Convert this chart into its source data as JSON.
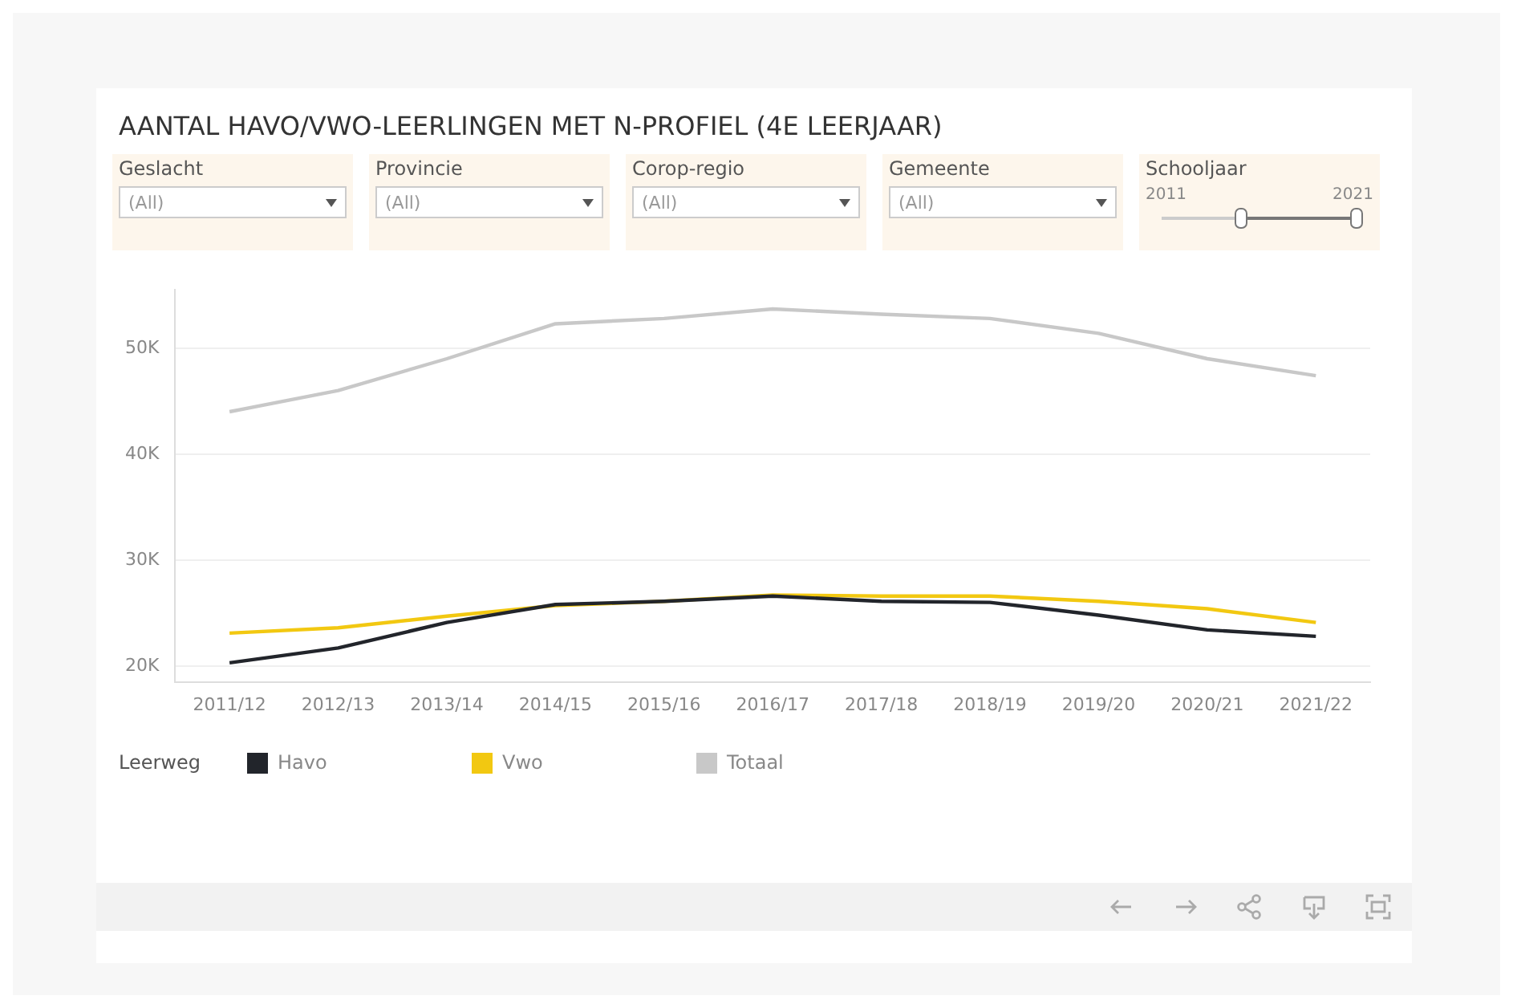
{
  "chart_data": {
    "type": "line",
    "title": "AANTAL HAVO/VWO-LEERLINGEN MET N-PROFIEL (4E LEERJAAR)",
    "categories": [
      "2011/12",
      "2012/13",
      "2013/14",
      "2014/15",
      "2015/16",
      "2016/17",
      "2017/18",
      "2018/19",
      "2019/20",
      "2020/21",
      "2021/22"
    ],
    "series": [
      {
        "name": "Havo",
        "color": "#22252b",
        "values": [
          20300,
          21700,
          24100,
          25800,
          26100,
          26600,
          26100,
          26000,
          24800,
          23400,
          22800
        ]
      },
      {
        "name": "Vwo",
        "color": "#f2c811",
        "values": [
          23100,
          23600,
          24700,
          25700,
          26100,
          26700,
          26600,
          26600,
          26100,
          25400,
          24100
        ]
      },
      {
        "name": "Totaal",
        "color": "#c8c8c8",
        "values": [
          44000,
          46000,
          49000,
          52300,
          52800,
          53700,
          53200,
          52800,
          51400,
          49000,
          47400
        ]
      }
    ],
    "ylim": [
      18500,
      55500
    ],
    "yticks": [
      {
        "value": 20000,
        "label": "20K"
      },
      {
        "value": 30000,
        "label": "30K"
      },
      {
        "value": 40000,
        "label": "40K"
      },
      {
        "value": 50000,
        "label": "50K"
      }
    ],
    "grid": "y",
    "legend": "bottom",
    "legend_title": "Leerweg",
    "marker": "none",
    "line_style": "solid",
    "annotations": [
      "Geslacht",
      "(All)",
      "Provincie",
      "(All)",
      "Corop-regio",
      "(All)",
      "Gemeente",
      "(All)",
      "Schooljaar",
      "2011",
      "2021"
    ]
  }
}
